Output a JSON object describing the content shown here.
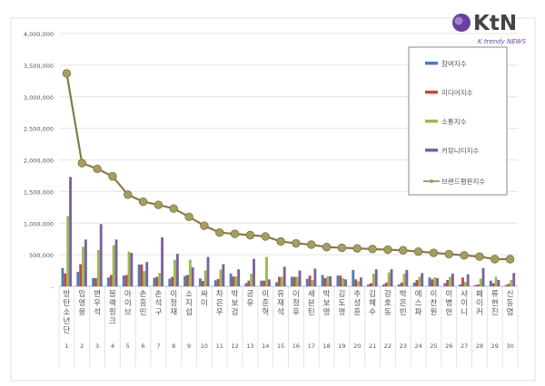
{
  "logo": {
    "text": "KtN",
    "subtext": "K trendy NEWS"
  },
  "chart_data": {
    "type": "bar",
    "title": "",
    "xlabel": "",
    "ylabel": "",
    "ylim": [
      0,
      4000000
    ],
    "yticks": [
      0,
      500000,
      1000000,
      1500000,
      2000000,
      2500000,
      3000000,
      3500000,
      4000000
    ],
    "ytick_labels": [
      "-",
      "500,000",
      "1,000,000",
      "1,500,000",
      "2,000,000",
      "2,500,000",
      "3,000,000",
      "3,500,000",
      "4,000,000"
    ],
    "grid": true,
    "legend_position": "top-right",
    "ranks": [
      "1",
      "2",
      "3",
      "4",
      "5",
      "6",
      "7",
      "8",
      "9",
      "10",
      "11",
      "12",
      "13",
      "14",
      "15",
      "16",
      "17",
      "18",
      "19",
      "20",
      "21",
      "22",
      "23",
      "24",
      "25",
      "26",
      "27",
      "28",
      "29",
      "30"
    ],
    "categories": [
      "방탄소년단",
      "임영웅",
      "변우석",
      "블랙핑크",
      "아이브",
      "손흥민",
      "손석구",
      "이정재",
      "소지섭",
      "싸이",
      "차은우",
      "박보검",
      "공유",
      "이준혁",
      "유재석",
      "이정후",
      "세븐틴",
      "박보영",
      "김도영",
      "추성훈",
      "김혜수",
      "강호동",
      "박은빈",
      "에스파",
      "이찬원",
      "이병헌",
      "샤이니",
      "페이커",
      "류현진",
      "신동엽"
    ],
    "series": [
      {
        "name": "참여지수",
        "type": "bar",
        "color": "#4a7ebb",
        "values": [
          290000,
          230000,
          130000,
          140000,
          170000,
          345000,
          135000,
          120000,
          165000,
          125000,
          95000,
          200000,
          50000,
          90000,
          65000,
          150000,
          120000,
          180000,
          170000,
          260000,
          30000,
          30000,
          30000,
          60000,
          140000,
          50000,
          30000,
          20000,
          90000,
          20000
        ]
      },
      {
        "name": "미디어지수",
        "type": "bar",
        "color": "#be4b48",
        "values": [
          205000,
          350000,
          130000,
          180000,
          180000,
          345000,
          150000,
          150000,
          180000,
          85000,
          115000,
          155000,
          90000,
          90000,
          150000,
          150000,
          170000,
          130000,
          170000,
          110000,
          50000,
          60000,
          60000,
          100000,
          110000,
          100000,
          140000,
          30000,
          50000,
          40000
        ]
      },
      {
        "name": "소통지수",
        "type": "bar",
        "color": "#98b954",
        "values": [
          1110000,
          625000,
          575000,
          650000,
          550000,
          240000,
          210000,
          420000,
          420000,
          250000,
          265000,
          155000,
          200000,
          465000,
          150000,
          150000,
          100000,
          160000,
          130000,
          80000,
          200000,
          220000,
          200000,
          150000,
          140000,
          150000,
          70000,
          120000,
          150000,
          100000
        ]
      },
      {
        "name": "커뮤니티지수",
        "type": "bar",
        "color": "#7d60a0",
        "values": [
          1730000,
          740000,
          985000,
          740000,
          530000,
          385000,
          775000,
          515000,
          300000,
          465000,
          350000,
          270000,
          435000,
          110000,
          310000,
          250000,
          280000,
          160000,
          110000,
          140000,
          270000,
          270000,
          260000,
          210000,
          130000,
          200000,
          190000,
          290000,
          100000,
          210000
        ]
      },
      {
        "name": "브랜드평판지수",
        "type": "line",
        "color": "#847b4a",
        "values": [
          3370000,
          1950000,
          1860000,
          1740000,
          1450000,
          1340000,
          1290000,
          1230000,
          1100000,
          960000,
          850000,
          830000,
          810000,
          790000,
          710000,
          680000,
          660000,
          620000,
          610000,
          600000,
          590000,
          580000,
          570000,
          550000,
          530000,
          510000,
          490000,
          470000,
          430000,
          430000
        ]
      }
    ]
  }
}
